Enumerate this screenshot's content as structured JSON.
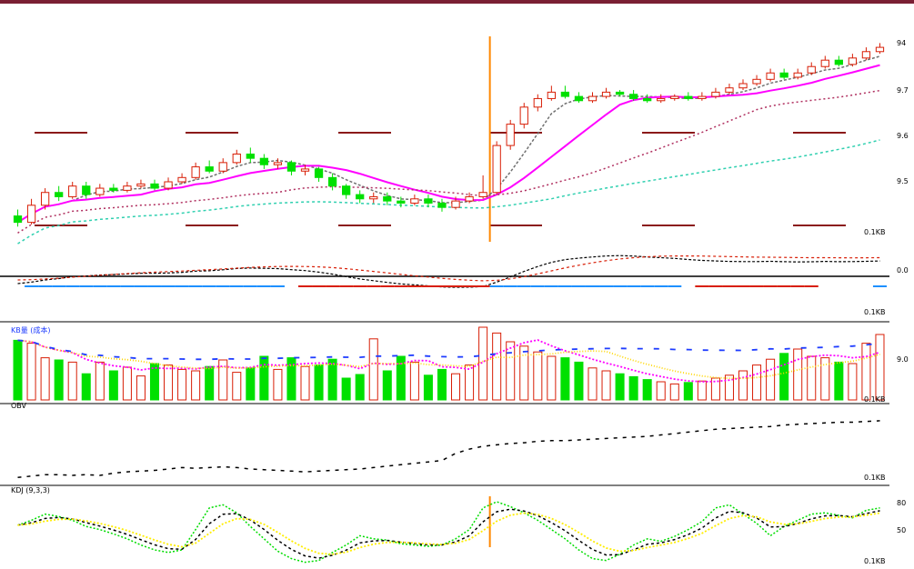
{
  "colors": {
    "bar_up": "#d81e06",
    "bar_down": "#00e000",
    "ma5": "#707070",
    "ma10": "#ff00ff",
    "ma20": "#b03060",
    "ma60": "#30d0b0",
    "event_line": "#ff8800",
    "level_marks": "#8b1a1a",
    "macd_dif": "#000000",
    "macd_dea": "#d81e06",
    "macd_hist": "#1e90ff",
    "vol_ma_short": "#ff00ff",
    "vol_ma_mid": "#ffd700",
    "vol_ma_long": "#1e3cff",
    "obv_line": "#000000",
    "kdj_k": "#000000",
    "kdj_d": "#ffee00",
    "kdj_j": "#00dd00",
    "separator": "#000000"
  },
  "panels": {
    "price_ticks": [
      "94",
      "9.7",
      "9.6",
      "9.5"
    ],
    "price_bottom_label": "0.1KB",
    "macd_ticks": [
      "0.0",
      "0.1KB"
    ],
    "vol_title": "KB量 (成本)",
    "vol_ticks": [
      "9.0",
      "0.1KB"
    ],
    "obv_title": "OBV",
    "obv_ticks": [
      "0.1KB"
    ],
    "kdj_title": "KDJ (9,3,3)",
    "kdj_ticks": [
      "80",
      "50",
      "0.1KB"
    ]
  },
  "chart_data": {
    "type": "candlestick",
    "title": "",
    "candles": [
      [
        9.15,
        9.12,
        9.18,
        9.1
      ],
      [
        9.12,
        9.2,
        9.23,
        9.11
      ],
      [
        9.2,
        9.26,
        9.28,
        9.18
      ],
      [
        9.26,
        9.24,
        9.29,
        9.22
      ],
      [
        9.24,
        9.29,
        9.31,
        9.23
      ],
      [
        9.29,
        9.25,
        9.31,
        9.23
      ],
      [
        9.25,
        9.28,
        9.3,
        9.24
      ],
      [
        9.28,
        9.27,
        9.3,
        9.26
      ],
      [
        9.27,
        9.29,
        9.31,
        9.26
      ],
      [
        9.29,
        9.3,
        9.32,
        9.28
      ],
      [
        9.3,
        9.28,
        9.32,
        9.27
      ],
      [
        9.28,
        9.31,
        9.33,
        9.27
      ],
      [
        9.31,
        9.33,
        9.35,
        9.3
      ],
      [
        9.33,
        9.38,
        9.4,
        9.32
      ],
      [
        9.38,
        9.36,
        9.41,
        9.35
      ],
      [
        9.36,
        9.4,
        9.42,
        9.35
      ],
      [
        9.4,
        9.44,
        9.46,
        9.39
      ],
      [
        9.44,
        9.42,
        9.47,
        9.4
      ],
      [
        9.42,
        9.39,
        9.44,
        9.37
      ],
      [
        9.39,
        9.4,
        9.42,
        9.37
      ],
      [
        9.4,
        9.36,
        9.41,
        9.34
      ],
      [
        9.36,
        9.37,
        9.39,
        9.34
      ],
      [
        9.37,
        9.33,
        9.38,
        9.31
      ],
      [
        9.33,
        9.29,
        9.35,
        9.27
      ],
      [
        9.29,
        9.25,
        9.3,
        9.23
      ],
      [
        9.25,
        9.23,
        9.27,
        9.21
      ],
      [
        9.23,
        9.24,
        9.26,
        9.21
      ],
      [
        9.24,
        9.22,
        9.26,
        9.2
      ],
      [
        9.22,
        9.21,
        9.24,
        9.19
      ],
      [
        9.21,
        9.23,
        9.25,
        9.2
      ],
      [
        9.23,
        9.21,
        9.25,
        9.19
      ],
      [
        9.21,
        9.19,
        9.23,
        9.17
      ],
      [
        9.19,
        9.22,
        9.24,
        9.18
      ],
      [
        9.22,
        9.24,
        9.26,
        9.21
      ],
      [
        9.24,
        9.26,
        9.34,
        9.23
      ],
      [
        9.26,
        9.48,
        9.5,
        9.25
      ],
      [
        9.48,
        9.58,
        9.6,
        9.46
      ],
      [
        9.58,
        9.66,
        9.68,
        9.56
      ],
      [
        9.66,
        9.7,
        9.72,
        9.64
      ],
      [
        9.7,
        9.73,
        9.76,
        9.69
      ],
      [
        9.73,
        9.71,
        9.76,
        9.7
      ],
      [
        9.71,
        9.69,
        9.73,
        9.68
      ],
      [
        9.69,
        9.71,
        9.73,
        9.68
      ],
      [
        9.71,
        9.73,
        9.75,
        9.7
      ],
      [
        9.73,
        9.72,
        9.74,
        9.71
      ],
      [
        9.72,
        9.7,
        9.74,
        9.69
      ],
      [
        9.7,
        9.69,
        9.72,
        9.68
      ],
      [
        9.69,
        9.7,
        9.72,
        9.68
      ],
      [
        9.7,
        9.71,
        9.72,
        9.69
      ],
      [
        9.71,
        9.7,
        9.73,
        9.69
      ],
      [
        9.7,
        9.71,
        9.73,
        9.69
      ],
      [
        9.71,
        9.73,
        9.75,
        9.7
      ],
      [
        9.73,
        9.75,
        9.77,
        9.72
      ],
      [
        9.75,
        9.77,
        9.79,
        9.74
      ],
      [
        9.77,
        9.79,
        9.81,
        9.76
      ],
      [
        9.79,
        9.82,
        9.84,
        9.78
      ],
      [
        9.82,
        9.8,
        9.84,
        9.79
      ],
      [
        9.8,
        9.82,
        9.84,
        9.79
      ],
      [
        9.82,
        9.85,
        9.87,
        9.81
      ],
      [
        9.85,
        9.88,
        9.9,
        9.84
      ],
      [
        9.88,
        9.86,
        9.9,
        9.85
      ],
      [
        9.86,
        9.89,
        9.91,
        9.85
      ],
      [
        9.89,
        9.92,
        9.94,
        9.88
      ],
      [
        9.92,
        9.94,
        9.96,
        9.91
      ]
    ],
    "event_index": 34,
    "price_range": [
      9.08,
      10.0
    ],
    "volumes": [
      0.82,
      0.78,
      0.58,
      0.55,
      0.52,
      0.36,
      0.52,
      0.4,
      0.45,
      0.33,
      0.5,
      0.48,
      0.42,
      0.4,
      0.46,
      0.55,
      0.38,
      0.44,
      0.6,
      0.42,
      0.58,
      0.46,
      0.48,
      0.56,
      0.3,
      0.35,
      0.84,
      0.4,
      0.6,
      0.52,
      0.34,
      0.42,
      0.36,
      0.48,
      1.0,
      0.92,
      0.8,
      0.74,
      0.66,
      0.6,
      0.58,
      0.52,
      0.44,
      0.4,
      0.36,
      0.32,
      0.28,
      0.25,
      0.22,
      0.24,
      0.26,
      0.3,
      0.34,
      0.4,
      0.48,
      0.56,
      0.64,
      0.7,
      0.6,
      0.58,
      0.52,
      0.5,
      0.78,
      0.9
    ],
    "obv": [
      0.06,
      0.08,
      0.1,
      0.1,
      0.09,
      0.1,
      0.09,
      0.12,
      0.14,
      0.15,
      0.16,
      0.18,
      0.2,
      0.19,
      0.2,
      0.21,
      0.2,
      0.18,
      0.17,
      0.16,
      0.15,
      0.14,
      0.15,
      0.16,
      0.17,
      0.18,
      0.2,
      0.22,
      0.24,
      0.26,
      0.28,
      0.3,
      0.4,
      0.46,
      0.5,
      0.52,
      0.54,
      0.55,
      0.57,
      0.58,
      0.58,
      0.59,
      0.6,
      0.61,
      0.62,
      0.63,
      0.64,
      0.66,
      0.68,
      0.7,
      0.72,
      0.74,
      0.75,
      0.76,
      0.77,
      0.78,
      0.8,
      0.81,
      0.82,
      0.83,
      0.84,
      0.84,
      0.85,
      0.86
    ],
    "kdj_j": [
      0.62,
      0.7,
      0.8,
      0.76,
      0.7,
      0.6,
      0.55,
      0.48,
      0.4,
      0.3,
      0.22,
      0.18,
      0.22,
      0.55,
      0.9,
      0.95,
      0.82,
      0.6,
      0.4,
      0.2,
      0.08,
      0.02,
      0.05,
      0.18,
      0.3,
      0.45,
      0.4,
      0.38,
      0.32,
      0.3,
      0.28,
      0.3,
      0.4,
      0.55,
      0.9,
      1.0,
      0.92,
      0.82,
      0.7,
      0.55,
      0.4,
      0.22,
      0.08,
      0.05,
      0.15,
      0.3,
      0.4,
      0.36,
      0.44,
      0.55,
      0.68,
      0.9,
      0.95,
      0.8,
      0.65,
      0.45,
      0.6,
      0.7,
      0.8,
      0.82,
      0.78,
      0.74,
      0.86,
      0.9
    ]
  }
}
